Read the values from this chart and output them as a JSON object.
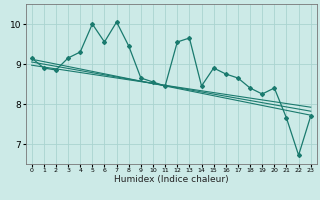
{
  "title": "",
  "xlabel": "Humidex (Indice chaleur)",
  "ylabel": "",
  "bg_color": "#cceae7",
  "grid_color": "#aad4d0",
  "line_color": "#1a7a6e",
  "xlim": [
    -0.5,
    23.5
  ],
  "ylim": [
    6.5,
    10.5
  ],
  "xticks": [
    0,
    1,
    2,
    3,
    4,
    5,
    6,
    7,
    8,
    9,
    10,
    11,
    12,
    13,
    14,
    15,
    16,
    17,
    18,
    19,
    20,
    21,
    22,
    23
  ],
  "yticks": [
    7,
    8,
    9,
    10
  ],
  "line1_x": [
    0,
    1,
    2,
    3,
    4,
    5,
    6,
    7,
    8,
    9,
    10,
    11,
    12,
    13,
    14,
    15,
    16,
    17,
    18,
    19,
    20,
    21,
    22,
    23
  ],
  "line1_y": [
    9.15,
    8.9,
    8.85,
    9.15,
    9.3,
    10.0,
    9.55,
    10.05,
    9.45,
    8.65,
    8.55,
    8.45,
    9.55,
    9.65,
    8.45,
    8.9,
    8.75,
    8.65,
    8.4,
    8.25,
    8.4,
    7.65,
    6.72,
    7.7
  ],
  "line2_x": [
    0,
    23
  ],
  "line2_y": [
    9.12,
    7.72
  ],
  "line3_x": [
    0,
    23
  ],
  "line3_y": [
    9.05,
    7.82
  ],
  "line4_x": [
    0,
    23
  ],
  "line4_y": [
    8.97,
    7.92
  ]
}
